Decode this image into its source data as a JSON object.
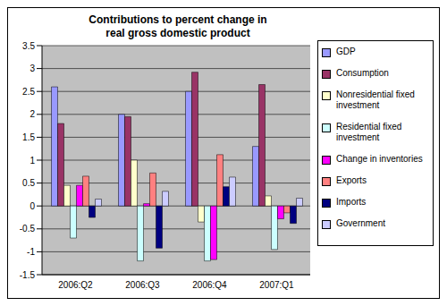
{
  "chart_data": {
    "type": "bar",
    "title": "Contributions to percent change in real gross domestic product",
    "categories": [
      "2006:Q2",
      "2006:Q3",
      "2006:Q4",
      "2007:Q1"
    ],
    "series": [
      {
        "name": "GDP",
        "color": "#9999ff",
        "values": [
          2.6,
          2.0,
          2.5,
          1.3
        ]
      },
      {
        "name": "Consumption",
        "color": "#993366",
        "values": [
          1.8,
          1.95,
          2.92,
          2.65
        ]
      },
      {
        "name": "Nonresidential fixed investment",
        "color": "#ffffcc",
        "values": [
          0.45,
          1.0,
          -0.35,
          0.22
        ]
      },
      {
        "name": "Residential fixed investment",
        "color": "#ccffff",
        "values": [
          -0.7,
          -1.2,
          -1.2,
          -0.95
        ]
      },
      {
        "name": "Change in inventories",
        "color": "#ff00ff",
        "values": [
          0.45,
          0.05,
          -1.17,
          -0.28
        ]
      },
      {
        "name": "Exports",
        "color": "#ff8080",
        "values": [
          0.65,
          0.72,
          1.12,
          -0.15
        ]
      },
      {
        "name": "Imports",
        "color": "#000080",
        "values": [
          -0.25,
          -0.92,
          0.42,
          -0.38
        ]
      },
      {
        "name": "Government",
        "color": "#ccccff",
        "values": [
          0.15,
          0.32,
          0.63,
          0.17
        ]
      }
    ],
    "ylim": [
      -1.5,
      3.5
    ],
    "yticks": [
      -1.5,
      -1,
      -0.5,
      0,
      0.5,
      1,
      1.5,
      2,
      2.5,
      3,
      3.5
    ],
    "grid": true,
    "legend": "right"
  }
}
